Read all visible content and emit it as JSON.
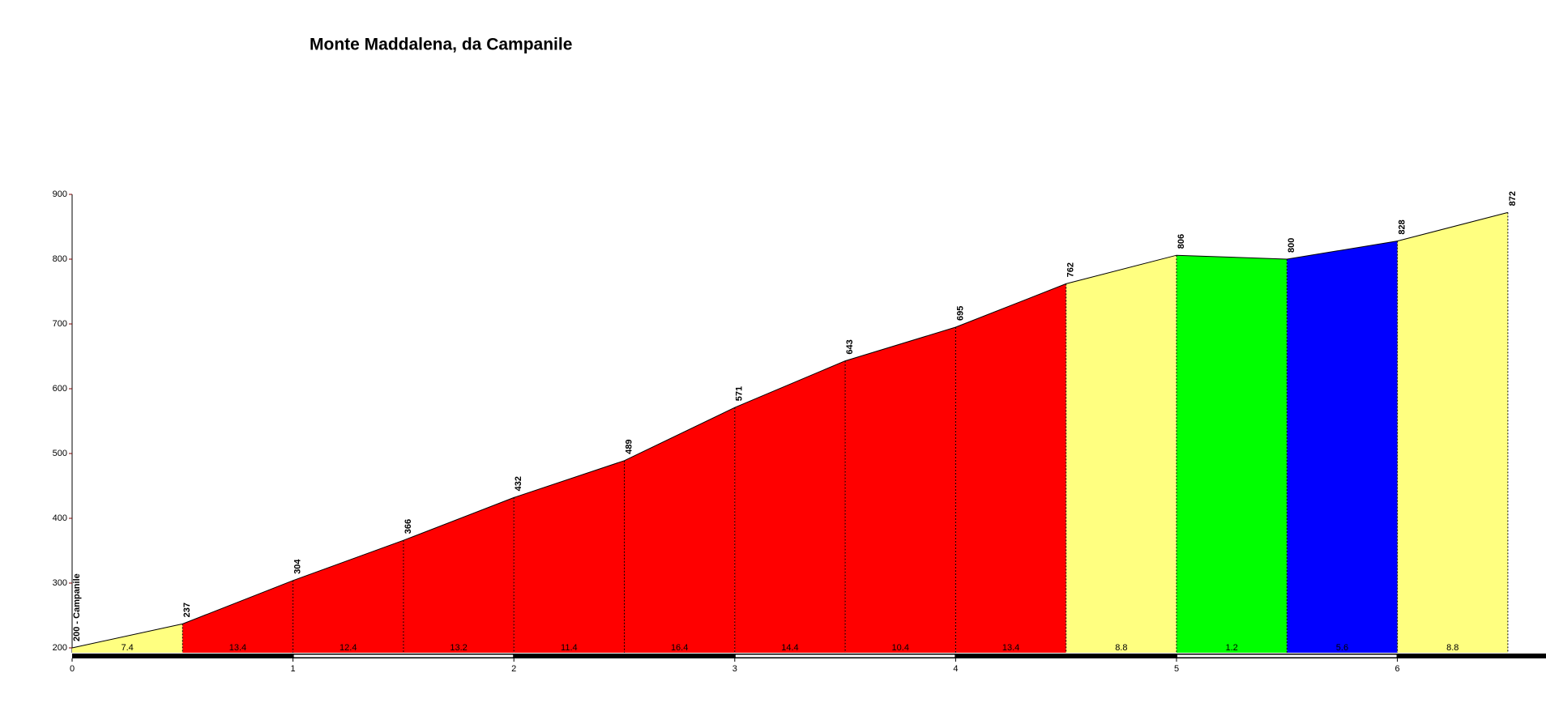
{
  "chart_data": {
    "type": "profile",
    "title": "Monte Maddalena, da Campanile",
    "x": [
      0,
      0.5,
      1,
      1.5,
      2,
      2.5,
      3,
      3.5,
      4,
      4.5,
      5,
      5.5,
      6,
      6.5
    ],
    "values": [
      200,
      237,
      304,
      366,
      432,
      489,
      571,
      643,
      695,
      762,
      806,
      800,
      828,
      872
    ],
    "value_labels": [
      "200 - Campanile",
      "237",
      "304",
      "366",
      "432",
      "489",
      "571",
      "643",
      "695",
      "762",
      "806",
      "800",
      "828",
      "872"
    ],
    "gradients": [
      7.4,
      13.4,
      12.4,
      13.2,
      11.4,
      16.4,
      14.4,
      10.4,
      13.4,
      8.8,
      1.2,
      5.6,
      8.8
    ],
    "segment_colors": [
      "#ffff80",
      "#ff0000",
      "#ff0000",
      "#ff0000",
      "#ff0000",
      "#ff0000",
      "#ff0000",
      "#ff0000",
      "#ff0000",
      "#ffff80",
      "#00ff00",
      "#0000ff",
      "#ffff80"
    ],
    "xlim": [
      0,
      6.5
    ],
    "xticks": [
      0,
      1,
      2,
      3,
      4,
      5,
      6
    ],
    "ylim": [
      200,
      900
    ],
    "yticks": [
      200,
      300,
      400,
      500,
      600,
      700,
      800,
      900
    ]
  }
}
